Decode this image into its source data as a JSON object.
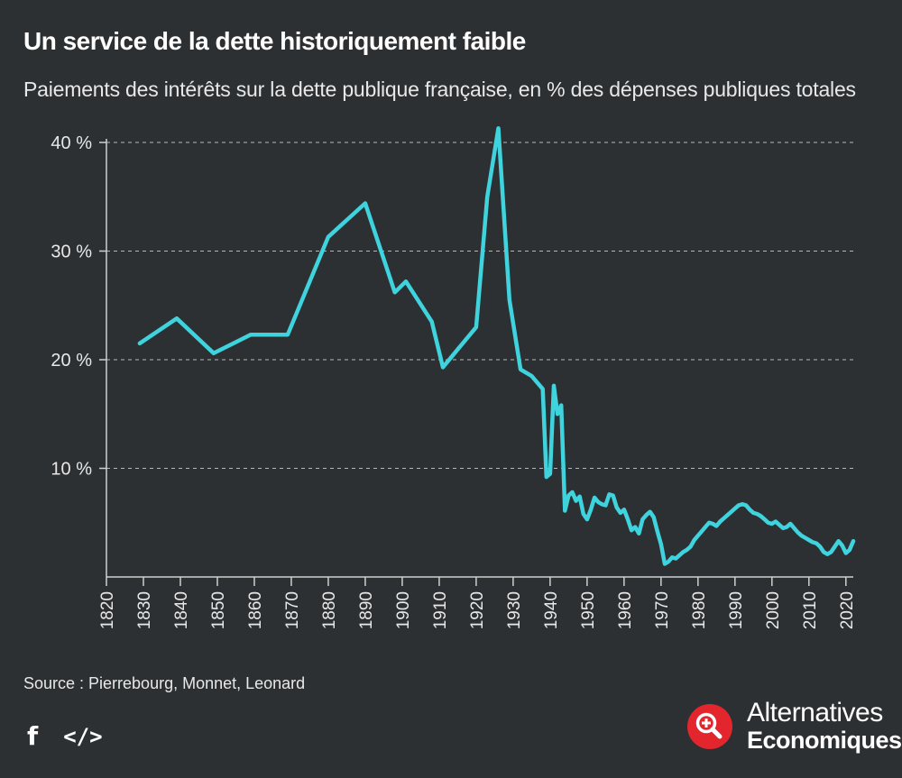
{
  "header": {
    "title": "Un service de la dette historiquement faible",
    "subtitle": "Paiements des intérêts sur la dette publique française, en % des dépenses publiques totales"
  },
  "footer": {
    "source": "Source : Pierrebourg, Monnet, Leonard",
    "facebook_label": "f",
    "embed_label": "</>",
    "brand_line1": "Alternatives",
    "brand_line2": "Economiques"
  },
  "colors": {
    "background": "#2d3033",
    "series": "#3ed3dd",
    "brand": "#e3262e",
    "grid": "#cfcfcf"
  },
  "chart_data": {
    "type": "line",
    "title": "Un service de la dette historiquement faible",
    "xlabel": "",
    "ylabel": "",
    "xlim": [
      1820,
      2022
    ],
    "ylim": [
      0,
      40
    ],
    "grid": true,
    "x_ticks": [
      1820,
      1830,
      1840,
      1850,
      1860,
      1870,
      1880,
      1890,
      1900,
      1910,
      1920,
      1930,
      1940,
      1950,
      1960,
      1970,
      1980,
      1990,
      2000,
      2010,
      2020
    ],
    "y_ticks": [
      {
        "value": 10,
        "label": "10 %"
      },
      {
        "value": 20,
        "label": "20 %"
      },
      {
        "value": 30,
        "label": "30 %"
      },
      {
        "value": 40,
        "label": "40 %"
      }
    ],
    "series": [
      {
        "name": "Paiements des intérêts",
        "points": [
          [
            1829,
            21.5
          ],
          [
            1839,
            23.8
          ],
          [
            1849,
            20.6
          ],
          [
            1859,
            22.3
          ],
          [
            1869,
            22.3
          ],
          [
            1880,
            31.3
          ],
          [
            1890,
            34.4
          ],
          [
            1898,
            26.2
          ],
          [
            1901,
            27.2
          ],
          [
            1908,
            23.5
          ],
          [
            1911,
            19.3
          ],
          [
            1920,
            23.0
          ],
          [
            1923,
            35.0
          ],
          [
            1926,
            41.3
          ],
          [
            1929,
            25.5
          ],
          [
            1932,
            19.1
          ],
          [
            1935,
            18.5
          ],
          [
            1938,
            17.3
          ],
          [
            1939,
            9.2
          ],
          [
            1940,
            9.5
          ],
          [
            1941,
            17.6
          ],
          [
            1942,
            15.0
          ],
          [
            1943,
            15.8
          ],
          [
            1944,
            6.1
          ],
          [
            1945,
            7.5
          ],
          [
            1946,
            7.8
          ],
          [
            1947,
            7.0
          ],
          [
            1948,
            7.4
          ],
          [
            1949,
            5.8
          ],
          [
            1950,
            5.3
          ],
          [
            1951,
            6.2
          ],
          [
            1952,
            7.3
          ],
          [
            1953,
            6.9
          ],
          [
            1954,
            6.7
          ],
          [
            1955,
            6.6
          ],
          [
            1956,
            7.6
          ],
          [
            1957,
            7.5
          ],
          [
            1958,
            6.4
          ],
          [
            1959,
            5.9
          ],
          [
            1960,
            6.2
          ],
          [
            1961,
            5.3
          ],
          [
            1962,
            4.3
          ],
          [
            1963,
            4.6
          ],
          [
            1964,
            4.0
          ],
          [
            1965,
            5.3
          ],
          [
            1966,
            5.7
          ],
          [
            1967,
            6.0
          ],
          [
            1968,
            5.5
          ],
          [
            1969,
            4.2
          ],
          [
            1970,
            3.0
          ],
          [
            1971,
            1.2
          ],
          [
            1972,
            1.4
          ],
          [
            1973,
            1.8
          ],
          [
            1974,
            1.7
          ],
          [
            1975,
            2.0
          ],
          [
            1976,
            2.3
          ],
          [
            1977,
            2.5
          ],
          [
            1978,
            2.8
          ],
          [
            1979,
            3.4
          ],
          [
            1980,
            3.8
          ],
          [
            1981,
            4.2
          ],
          [
            1982,
            4.6
          ],
          [
            1983,
            5.0
          ],
          [
            1984,
            4.9
          ],
          [
            1985,
            4.7
          ],
          [
            1986,
            5.1
          ],
          [
            1987,
            5.4
          ],
          [
            1988,
            5.7
          ],
          [
            1989,
            6.0
          ],
          [
            1990,
            6.3
          ],
          [
            1991,
            6.6
          ],
          [
            1992,
            6.7
          ],
          [
            1993,
            6.6
          ],
          [
            1994,
            6.2
          ],
          [
            1995,
            5.9
          ],
          [
            1996,
            5.8
          ],
          [
            1997,
            5.6
          ],
          [
            1998,
            5.3
          ],
          [
            1999,
            5.0
          ],
          [
            2000,
            4.9
          ],
          [
            2001,
            5.1
          ],
          [
            2002,
            4.8
          ],
          [
            2003,
            4.5
          ],
          [
            2004,
            4.6
          ],
          [
            2005,
            4.9
          ],
          [
            2006,
            4.5
          ],
          [
            2007,
            4.1
          ],
          [
            2008,
            3.8
          ],
          [
            2009,
            3.6
          ],
          [
            2010,
            3.4
          ],
          [
            2011,
            3.2
          ],
          [
            2012,
            3.1
          ],
          [
            2013,
            2.8
          ],
          [
            2014,
            2.3
          ],
          [
            2015,
            2.1
          ],
          [
            2016,
            2.3
          ],
          [
            2017,
            2.8
          ],
          [
            2018,
            3.3
          ],
          [
            2019,
            2.9
          ],
          [
            2020,
            2.2
          ],
          [
            2021,
            2.5
          ],
          [
            2022,
            3.3
          ]
        ]
      }
    ]
  }
}
